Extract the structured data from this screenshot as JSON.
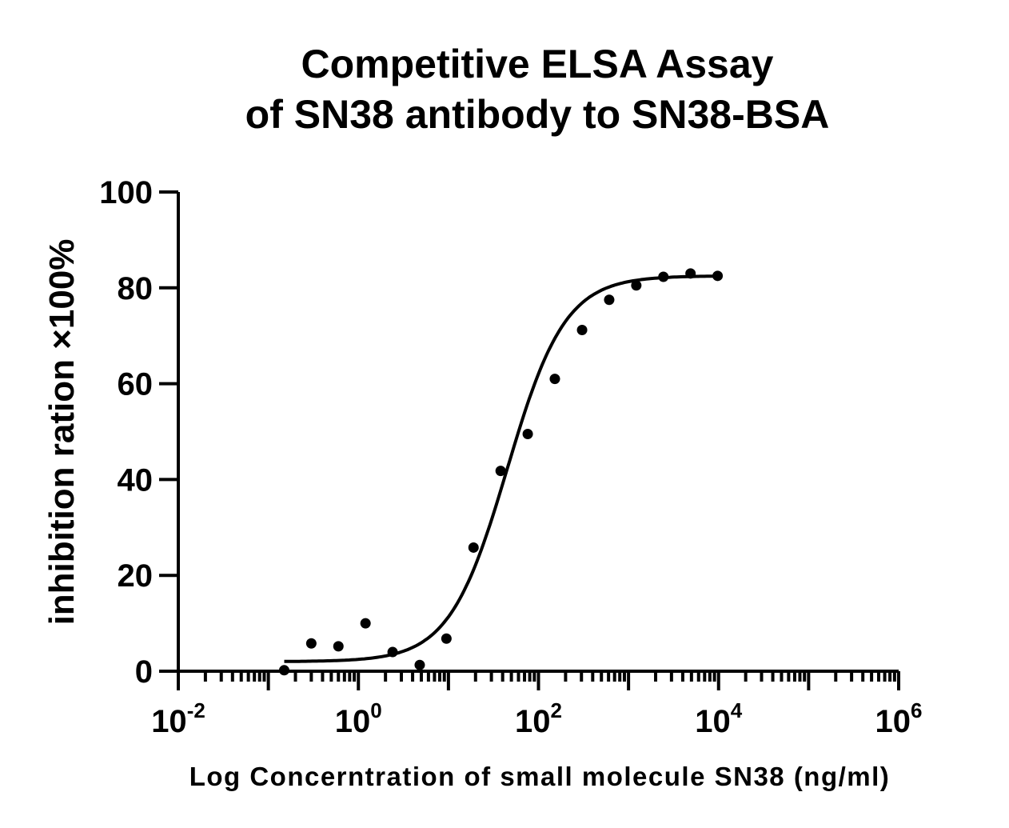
{
  "chart_data": {
    "type": "scatter",
    "title_lines": [
      "Competitive ELSA Assay",
      "of  SN38 antibody to SN38-BSA"
    ],
    "xlabel": "Log Concerntration of small molecule SN38 (ng/ml)",
    "ylabel": "inhibition ration ×100%",
    "x_scale": "log",
    "xlim": [
      0.01,
      1000000
    ],
    "ylim": [
      0,
      100
    ],
    "y_ticks": [
      0,
      20,
      40,
      60,
      80,
      100
    ],
    "x_ticks": [
      {
        "base": "10",
        "exp": "-2"
      },
      {
        "base": "10",
        "exp": "0"
      },
      {
        "base": "10",
        "exp": "2"
      },
      {
        "base": "10",
        "exp": "4"
      },
      {
        "base": "10",
        "exp": "6"
      }
    ],
    "grid": false,
    "points": [
      {
        "x": 0.15,
        "y": 0.2
      },
      {
        "x": 0.3,
        "y": 5.8
      },
      {
        "x": 0.6,
        "y": 5.2
      },
      {
        "x": 1.2,
        "y": 10.0
      },
      {
        "x": 2.4,
        "y": 4.0
      },
      {
        "x": 4.8,
        "y": 1.3
      },
      {
        "x": 9.5,
        "y": 6.8
      },
      {
        "x": 19,
        "y": 25.8
      },
      {
        "x": 38,
        "y": 41.8
      },
      {
        "x": 76,
        "y": 49.5
      },
      {
        "x": 152,
        "y": 61.0
      },
      {
        "x": 305,
        "y": 71.2
      },
      {
        "x": 610,
        "y": 77.5
      },
      {
        "x": 1220,
        "y": 80.5
      },
      {
        "x": 2440,
        "y": 82.3
      },
      {
        "x": 4880,
        "y": 83.0
      },
      {
        "x": 9760,
        "y": 82.5
      }
    ],
    "fit_curve": {
      "model": "four-parameter logistic",
      "bottom": 2.0,
      "top": 82.5,
      "ec50": 45,
      "hill": 1.35,
      "x_range": [
        0.15,
        9760
      ]
    }
  }
}
